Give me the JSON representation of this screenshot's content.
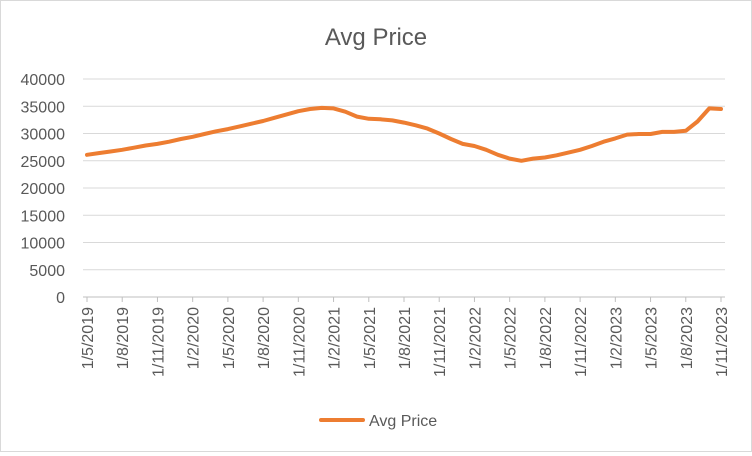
{
  "chart_data": {
    "type": "line",
    "title": "Avg Price",
    "xlabel": "",
    "ylabel": "",
    "ylim": [
      0,
      40000
    ],
    "y_ticks": [
      0,
      5000,
      10000,
      15000,
      20000,
      25000,
      30000,
      35000,
      40000
    ],
    "x_tick_labels": [
      "1/5/2019",
      "1/8/2019",
      "1/11/2019",
      "1/2/2020",
      "1/5/2020",
      "1/8/2020",
      "1/11/2020",
      "1/2/2021",
      "1/5/2021",
      "1/8/2021",
      "1/11/2021",
      "1/2/2022",
      "1/5/2022",
      "1/8/2022",
      "1/11/2022",
      "1/2/2023",
      "1/5/2023",
      "1/8/2023",
      "1/11/2023"
    ],
    "grid": "horizontal",
    "legend_position": "bottom",
    "series": [
      {
        "name": "Avg Price",
        "color": "#ED7D31",
        "x": [
          "1/5/2019",
          "1/6/2019",
          "1/7/2019",
          "1/8/2019",
          "1/9/2019",
          "1/10/2019",
          "1/11/2019",
          "1/12/2019",
          "1/1/2020",
          "1/2/2020",
          "1/3/2020",
          "1/4/2020",
          "1/5/2020",
          "1/6/2020",
          "1/7/2020",
          "1/8/2020",
          "1/9/2020",
          "1/10/2020",
          "1/11/2020",
          "1/12/2020",
          "1/1/2021",
          "1/2/2021",
          "1/3/2021",
          "1/4/2021",
          "1/5/2021",
          "1/6/2021",
          "1/7/2021",
          "1/8/2021",
          "1/9/2021",
          "1/10/2021",
          "1/11/2021",
          "1/12/2021",
          "1/1/2022",
          "1/2/2022",
          "1/3/2022",
          "1/4/2022",
          "1/5/2022",
          "1/6/2022",
          "1/7/2022",
          "1/8/2022",
          "1/9/2022",
          "1/10/2022",
          "1/11/2022",
          "1/12/2022",
          "1/1/2023",
          "1/2/2023",
          "1/3/2023",
          "1/4/2023",
          "1/5/2023",
          "1/6/2023",
          "1/7/2023",
          "1/8/2023",
          "1/9/2023",
          "1/10/2023",
          "1/11/2023"
        ],
        "values": [
          26100,
          26400,
          26700,
          27000,
          27400,
          27800,
          28100,
          28500,
          29000,
          29400,
          29900,
          30400,
          30800,
          31300,
          31800,
          32300,
          32900,
          33500,
          34100,
          34500,
          34700,
          34600,
          34000,
          33100,
          32700,
          32600,
          32400,
          32000,
          31500,
          30900,
          30000,
          29000,
          28100,
          27700,
          27000,
          26100,
          25400,
          25000,
          25400,
          25600,
          26000,
          26500,
          27000,
          27700,
          28500,
          29100,
          29800,
          29900,
          29900,
          30300,
          30300,
          30500,
          32200,
          34600,
          34500
        ]
      }
    ]
  }
}
